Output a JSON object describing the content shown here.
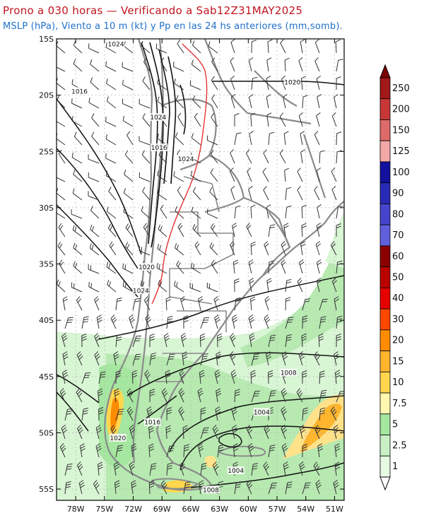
{
  "header": {
    "title": "Prono a 030 horas — Verificando a Sab12Z31MAY2025",
    "subtitle": "MSLP (hPa), Viento a 10 m (kt) y Pp en las 24 hs anteriores (mm,somb)."
  },
  "map": {
    "lat_labels": [
      "15S",
      "20S",
      "25S",
      "30S",
      "35S",
      "40S",
      "45S",
      "50S",
      "55S"
    ],
    "lon_labels": [
      "78W",
      "75W",
      "72W",
      "69W",
      "66W",
      "63W",
      "60W",
      "57W",
      "54W",
      "51W"
    ],
    "isobar_labels": [
      {
        "text": "1024",
        "lon": -73.8,
        "lat": -15.6
      },
      {
        "text": "1016",
        "lon": -77.6,
        "lat": -19.8
      },
      {
        "text": "1020",
        "lon": -55.4,
        "lat": -19.0
      },
      {
        "text": "1024",
        "lon": -69.4,
        "lat": -22.1
      },
      {
        "text": "1016",
        "lon": -69.3,
        "lat": -24.8
      },
      {
        "text": "1024",
        "lon": -66.5,
        "lat": -25.8
      },
      {
        "text": "1020",
        "lon": -70.6,
        "lat": -35.4
      },
      {
        "text": "1024",
        "lon": -71.2,
        "lat": -37.5
      },
      {
        "text": "1008",
        "lon": -55.8,
        "lat": -44.8
      },
      {
        "text": "1004",
        "lon": -58.6,
        "lat": -48.3
      },
      {
        "text": "1016",
        "lon": -70.0,
        "lat": -49.2
      },
      {
        "text": "1020",
        "lon": -73.6,
        "lat": -50.6
      },
      {
        "text": "1004",
        "lon": -61.3,
        "lat": -53.5
      },
      {
        "text": "1008",
        "lon": -63.9,
        "lat": -55.2
      }
    ]
  },
  "colorbar": {
    "labels": [
      "250",
      "200",
      "150",
      "125",
      "100",
      "90",
      "80",
      "70",
      "60",
      "50",
      "40",
      "30",
      "20",
      "15",
      "10",
      "7.5",
      "5",
      "2.5",
      "1"
    ],
    "colors": [
      "#a31818",
      "#c83737",
      "#de6a6a",
      "#f4a8a8",
      "#11119e",
      "#2a2ab8",
      "#4444cc",
      "#6060dd",
      "#8a0000",
      "#bb0000",
      "#e60000",
      "#ff4800",
      "#ff8c00",
      "#ffb52e",
      "#ffd64d",
      "#fff7b0",
      "#a5e6a0",
      "#c8f0c4",
      "#e6fae4"
    ]
  }
}
